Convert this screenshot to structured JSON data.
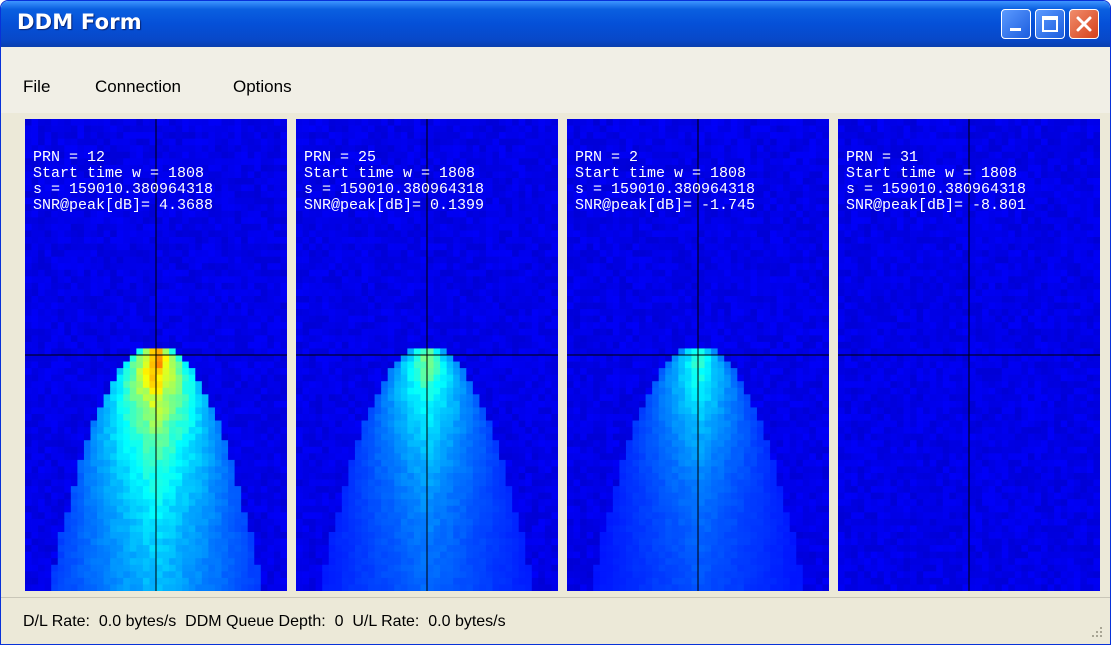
{
  "window": {
    "title": "DDM Form"
  },
  "menu": {
    "items": [
      "File",
      "Connection",
      "Options"
    ]
  },
  "panels": [
    {
      "prn": "PRN = 12",
      "start": "Start time w = 1808",
      "s": "s = 159010.380964318",
      "snr": "SNR@peak[dB]= 4.3688",
      "peak_level": 1.0
    },
    {
      "prn": "PRN = 25",
      "start": "Start time w = 1808",
      "s": "s = 159010.380964318",
      "snr": "SNR@peak[dB]= 0.1399",
      "peak_level": 0.6
    },
    {
      "prn": "PRN = 2",
      "start": "Start time w = 1808",
      "s": "s = 159010.380964318",
      "snr": "SNR@peak[dB]= -1.745",
      "peak_level": 0.5
    },
    {
      "prn": "PRN = 31",
      "start": "Start time w = 1808",
      "s": "s = 159010.380964318",
      "snr": "SNR@peak[dB]= -8.801",
      "peak_level": 0.0
    }
  ],
  "status": {
    "dl_label": "D/L Rate:",
    "dl_value": "0.0 bytes/s",
    "queue_label": "DDM Queue Depth:",
    "queue_value": "0",
    "ul_label": "U/L Rate:",
    "ul_value": "0.0 bytes/s"
  },
  "colors": {
    "titlebar": "#0550d8",
    "plot_background": "#0a1a8c",
    "close_button": "#d6401a"
  }
}
